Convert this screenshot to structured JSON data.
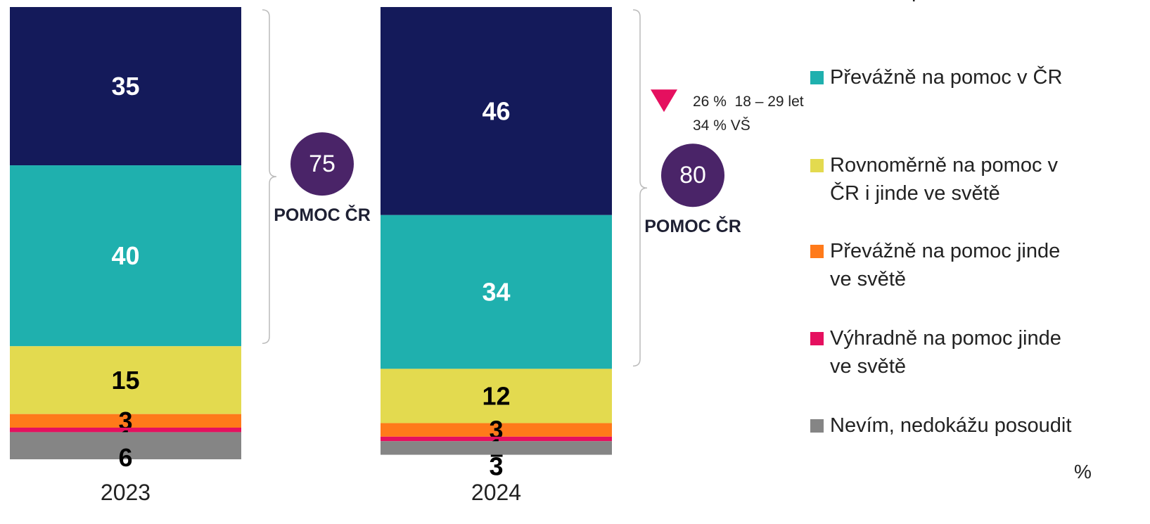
{
  "chart_data": {
    "type": "bar",
    "stacked": true,
    "categories": [
      "2023",
      "2024"
    ],
    "series": [
      {
        "name": "Výhradně na pomoc v České republice",
        "color": "#141a5a",
        "values": [
          35,
          46
        ]
      },
      {
        "name": "Převážně na pomoc v ČR",
        "color": "#1fb0ae",
        "values": [
          40,
          34
        ]
      },
      {
        "name": "Rovnoměrně na pomoc v ČR i jinde ve světě",
        "color": "#e3da4f",
        "values": [
          15,
          12
        ]
      },
      {
        "name": "Převážně na pomoc jinde ve světě",
        "color": "#ff7a1a",
        "values": [
          3,
          3
        ]
      },
      {
        "name": "Výhradně na pomoc jinde ve světě",
        "color": "#e5105f",
        "values": [
          1,
          1
        ]
      },
      {
        "name": "Nevím, nedokážu posoudit",
        "color": "#858585",
        "values": [
          6,
          3
        ]
      }
    ],
    "ylim": [
      0,
      100
    ],
    "brackets": [
      {
        "value": 75,
        "label": "POMOC ČR"
      },
      {
        "value": 80,
        "label": "POMOC ČR",
        "notes": [
          "26 %  18 – 29 let",
          "34 % VŠ"
        ]
      }
    ],
    "unit": "%"
  }
}
